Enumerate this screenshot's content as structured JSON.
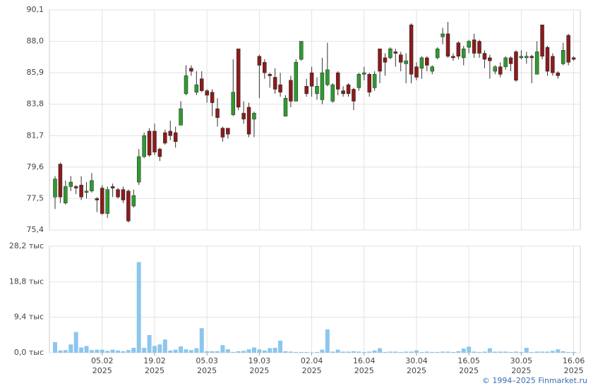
{
  "chart_data": [
    {
      "type": "candlestick",
      "up_color": "#2f9a2f",
      "down_color": "#8b1c1c",
      "grid": true,
      "ylim": [
        75.4,
        90.1
      ],
      "yticks": [
        {
          "value": 75.4,
          "label": "75,4"
        },
        {
          "value": 77.5,
          "label": "77,5"
        },
        {
          "value": 79.6,
          "label": "79,6"
        },
        {
          "value": 81.7,
          "label": "81,7"
        },
        {
          "value": 83.8,
          "label": "83,8"
        },
        {
          "value": 85.9,
          "label": "85,9"
        },
        {
          "value": 88.0,
          "label": "88,0"
        },
        {
          "value": 90.1,
          "label": "90,1"
        }
      ],
      "open": [
        77.6,
        79.8,
        77.2,
        78.3,
        78.3,
        78.4,
        77.9,
        78.0,
        77.5,
        78.2,
        76.5,
        78.3,
        78.1,
        78.1,
        78.0,
        77.0,
        78.6,
        80.3,
        82.0,
        82.0,
        80.8,
        81.9,
        82.0,
        81.9,
        82.4,
        84.5,
        86.2,
        84.6,
        85.5,
        84.7,
        84.6,
        83.5,
        82.2,
        82.2,
        83.1,
        87.5,
        83.2,
        83.6,
        82.8,
        87.0,
        86.6,
        85.8,
        85.6,
        85.1,
        83.0,
        85.4,
        84.0,
        86.8,
        85.0,
        85.9,
        84.5,
        84.1,
        85.1,
        84.0,
        85.9,
        84.7,
        85.1,
        84.8,
        84.9,
        85.8,
        85.8,
        84.9,
        87.5,
        86.9,
        86.9,
        87.3,
        87.1,
        86.5,
        89.1,
        86.3,
        86.2,
        86.9,
        86.0,
        86.9,
        88.3,
        88.5,
        87.0,
        87.9,
        86.9,
        87.6,
        88.1,
        88.0,
        87.2,
        86.9,
        86.0,
        86.3,
        86.3,
        86.9,
        87.3,
        86.9,
        86.9,
        87.0,
        85.8,
        89.1,
        87.6,
        87.0,
        85.9,
        86.5,
        88.4,
        86.9
      ],
      "high": [
        79.0,
        79.9,
        78.7,
        79.0,
        78.4,
        79.0,
        78.6,
        79.2,
        77.6,
        78.4,
        78.3,
        78.5,
        78.2,
        78.3,
        78.1,
        78.1,
        80.8,
        81.9,
        82.2,
        82.5,
        80.9,
        82.1,
        82.7,
        82.3,
        84.0,
        86.4,
        86.4,
        86.0,
        86.0,
        84.8,
        84.8,
        84.2,
        82.3,
        82.2,
        86.8,
        87.5,
        84.0,
        83.9,
        83.3,
        87.1,
        86.8,
        85.9,
        86.2,
        85.9,
        84.4,
        85.7,
        86.8,
        88.0,
        85.5,
        86.3,
        85.6,
        86.9,
        87.9,
        85.2,
        86.0,
        85.0,
        85.2,
        84.9,
        85.9,
        86.3,
        85.9,
        86.0,
        87.5,
        87.2,
        87.6,
        87.5,
        87.3,
        87.2,
        89.2,
        86.6,
        87.0,
        87.0,
        86.4,
        87.6,
        88.9,
        89.3,
        87.2,
        88.0,
        87.7,
        88.1,
        88.5,
        88.1,
        87.4,
        87.1,
        86.4,
        86.6,
        87.0,
        87.0,
        87.4,
        87.4,
        87.3,
        87.1,
        88.0,
        89.1,
        87.7,
        87.2,
        86.0,
        87.9,
        88.5,
        87.0
      ],
      "low": [
        76.8,
        77.2,
        77.1,
        78.0,
        77.8,
        77.4,
        77.5,
        77.9,
        76.6,
        76.4,
        76.2,
        77.6,
        77.5,
        77.2,
        75.9,
        76.9,
        78.4,
        80.2,
        80.3,
        80.4,
        80.0,
        81.1,
        81.4,
        80.9,
        82.4,
        84.4,
        85.7,
        84.4,
        84.6,
        83.9,
        83.0,
        82.3,
        81.3,
        81.5,
        83.0,
        83.4,
        82.5,
        81.6,
        81.6,
        84.2,
        85.5,
        84.9,
        84.5,
        84.3,
        83.0,
        83.6,
        84.0,
        86.7,
        84.3,
        84.3,
        84.1,
        83.8,
        85.0,
        83.9,
        84.4,
        84.3,
        84.3,
        83.4,
        84.7,
        85.4,
        84.3,
        84.7,
        85.2,
        85.7,
        86.8,
        86.3,
        86.0,
        85.2,
        85.2,
        85.4,
        85.5,
        86.0,
        85.8,
        86.8,
        87.8,
        86.9,
        86.7,
        86.8,
        86.4,
        87.2,
        86.9,
        86.9,
        86.2,
        85.5,
        85.8,
        85.6,
        86.1,
        86.0,
        85.3,
        86.8,
        86.5,
        85.2,
        85.8,
        86.8,
        85.7,
        85.7,
        85.5,
        86.4,
        86.4,
        86.7
      ],
      "close": [
        78.8,
        77.6,
        78.3,
        78.6,
        78.2,
        77.6,
        78.0,
        78.7,
        77.4,
        76.5,
        78.1,
        78.2,
        77.6,
        77.4,
        76.0,
        77.7,
        80.3,
        81.7,
        80.4,
        80.6,
        80.3,
        81.2,
        81.7,
        81.3,
        83.5,
        85.7,
        86.0,
        85.1,
        84.7,
        84.4,
        83.9,
        82.9,
        81.6,
        81.8,
        84.6,
        83.6,
        82.8,
        81.8,
        83.2,
        86.4,
        85.9,
        85.7,
        84.8,
        84.6,
        84.2,
        84.0,
        86.6,
        88.0,
        84.5,
        85.0,
        85.0,
        85.9,
        86.1,
        85.1,
        84.8,
        84.5,
        84.5,
        84.0,
        85.8,
        85.9,
        84.6,
        85.8,
        86.0,
        86.6,
        87.5,
        87.2,
        86.6,
        86.7,
        85.8,
        85.6,
        86.9,
        86.4,
        86.3,
        87.5,
        88.5,
        87.0,
        86.9,
        87.0,
        87.5,
        88.0,
        87.2,
        87.2,
        86.8,
        86.7,
        86.3,
        85.8,
        86.9,
        86.5,
        85.4,
        87.0,
        87.0,
        86.9,
        87.3,
        87.0,
        86.0,
        85.9,
        85.7,
        87.4,
        86.6,
        86.8
      ]
    },
    {
      "type": "bar",
      "color": "#8cc6ee",
      "grid": true,
      "ylim": [
        0,
        28.2
      ],
      "yticks": [
        {
          "value": 0,
          "label": "0,0 тыс"
        },
        {
          "value": 9.4,
          "label": "9,4 тыс"
        },
        {
          "value": 18.8,
          "label": "18,8 тыс"
        },
        {
          "value": 28.2,
          "label": "28,2 тыс"
        }
      ],
      "categories": [
        null,
        null,
        null,
        null,
        null,
        null,
        null,
        null,
        null,
        "05.02\n2025",
        null,
        null,
        null,
        null,
        null,
        null,
        null,
        null,
        null,
        "19.02\n2025",
        null,
        null,
        null,
        null,
        null,
        null,
        null,
        null,
        null,
        "05.03\n2025",
        null,
        null,
        null,
        null,
        null,
        null,
        null,
        null,
        null,
        "19.03\n2025",
        null,
        null,
        null,
        null,
        null,
        null,
        null,
        null,
        null,
        "02.04\n2025",
        null,
        null,
        null,
        null,
        null,
        null,
        null,
        null,
        null,
        "16.04\n2025",
        null,
        null,
        null,
        null,
        null,
        null,
        null,
        null,
        null,
        "30.04\n2025",
        null,
        null,
        null,
        null,
        null,
        null,
        null,
        null,
        null,
        "16.05\n2025",
        null,
        null,
        null,
        null,
        null,
        null,
        null,
        null,
        null,
        "30.05\n2025",
        null,
        null,
        null,
        null,
        null,
        null,
        null,
        null,
        null,
        "16.06\n2025"
      ],
      "values": [
        2.8,
        0.6,
        0.7,
        2.2,
        5.5,
        1.4,
        1.8,
        0.7,
        0.8,
        0.8,
        0.5,
        0.8,
        0.6,
        0.4,
        0.7,
        1.3,
        24.0,
        1.3,
        4.7,
        1.8,
        2.2,
        3.5,
        0.6,
        0.8,
        1.7,
        0.9,
        0.7,
        1.2,
        6.5,
        0.4,
        0.4,
        0.4,
        2.0,
        0.9,
        0.2,
        0.4,
        0.5,
        0.9,
        1.4,
        0.9,
        0.6,
        1.2,
        1.3,
        3.2,
        0.4,
        0.3,
        0.2,
        0.2,
        0.2,
        0.1,
        0.2,
        0.8,
        6.2,
        0.3,
        0.8,
        0.3,
        0.3,
        0.4,
        0.3,
        0.2,
        0.3,
        0.6,
        1.2,
        0.2,
        0.3,
        0.3,
        0.2,
        0.3,
        0.3,
        0.6,
        0.2,
        0.3,
        0.2,
        0.2,
        0.3,
        0.3,
        0.2,
        0.4,
        1.1,
        1.6,
        0.3,
        0.2,
        0.3,
        1.2,
        0.3,
        0.3,
        0.3,
        0.2,
        0.3,
        0.2,
        1.3,
        0.2,
        0.3,
        0.3,
        0.3,
        0.5,
        0.9,
        0.4,
        0.2,
        0.2
      ]
    }
  ],
  "source": "© 1994–2025 Finmarket.ru"
}
